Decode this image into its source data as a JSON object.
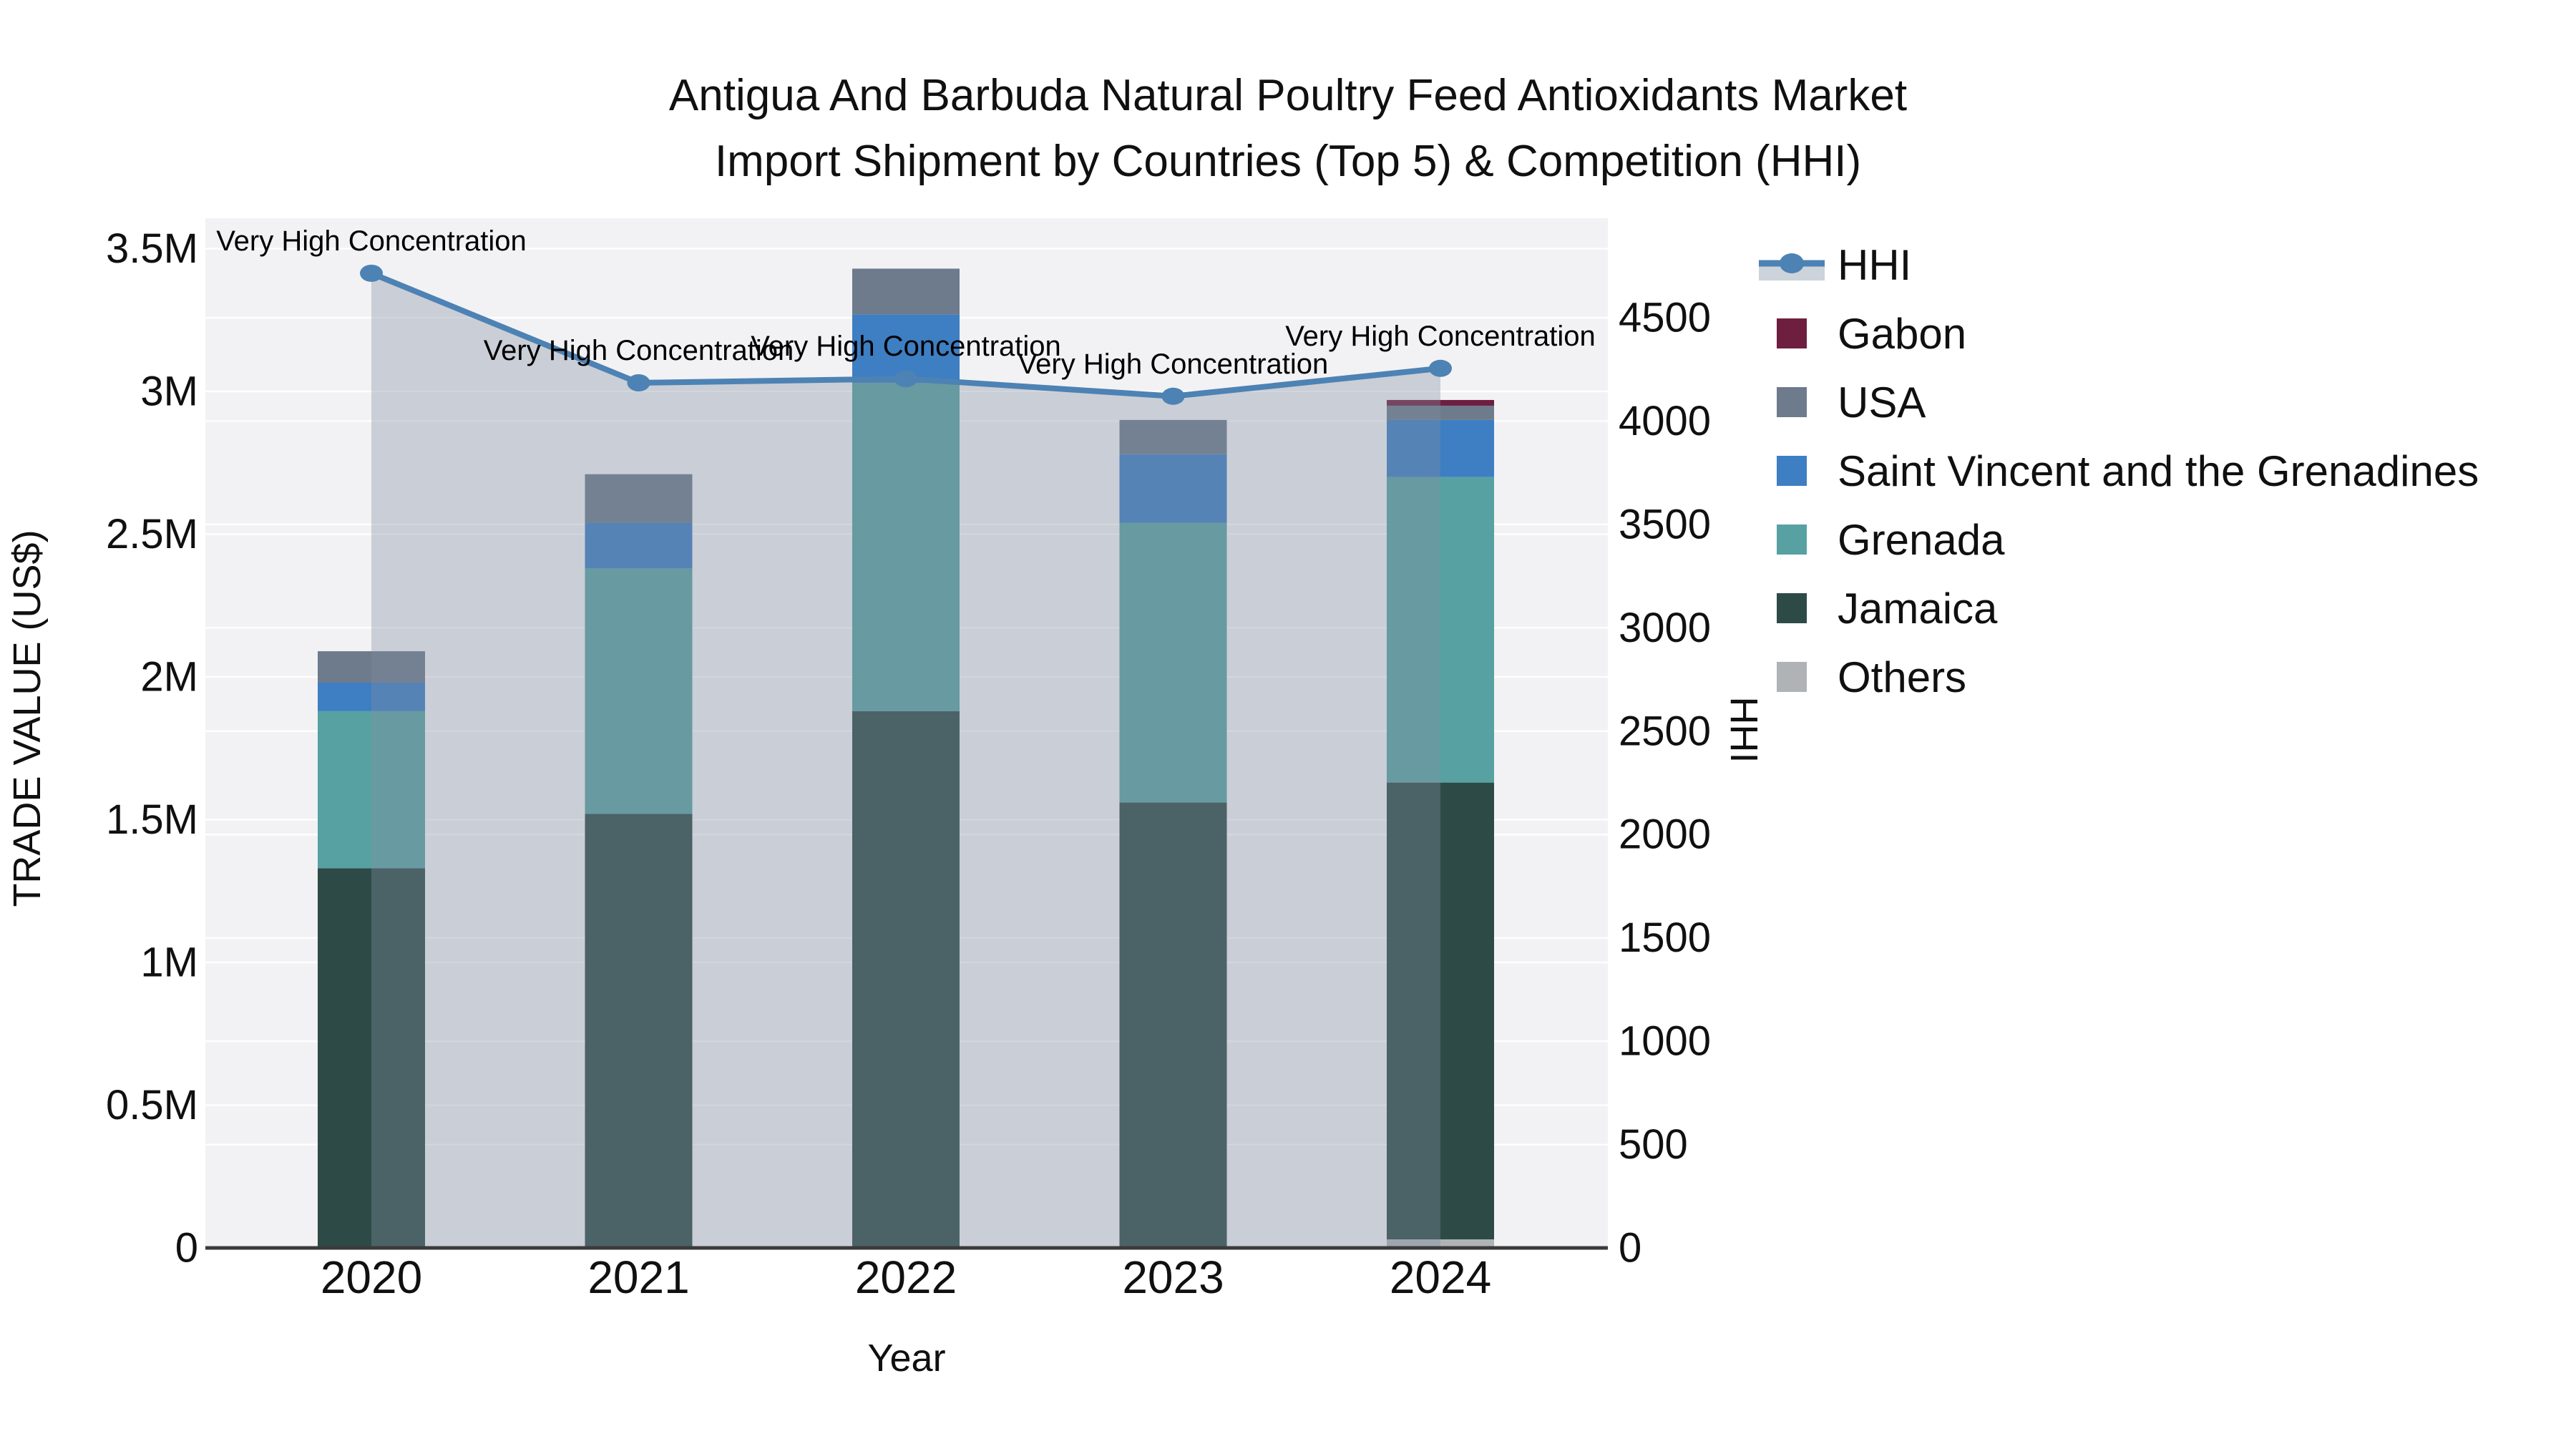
{
  "title": {
    "line1": "Antigua And Barbuda Natural Poultry Feed Antioxidants Market",
    "line2": "Import Shipment by Countries (Top 5) & Competition (HHI)"
  },
  "axes": {
    "x": {
      "title": "Year"
    },
    "y_left": {
      "title": "TRADE VALUE (US$)",
      "tick_labels": [
        "0",
        "0.5M",
        "1M",
        "1.5M",
        "2M",
        "2.5M",
        "3M",
        "3.5M"
      ],
      "max_millions": 3.5
    },
    "y_right": {
      "title": "HHI",
      "tick_labels": [
        "0",
        "500",
        "1000",
        "1500",
        "2000",
        "2500",
        "3000",
        "3500",
        "4000",
        "4500"
      ],
      "max": 4500
    }
  },
  "colors": {
    "plot_background": "#f2f2f4",
    "gridline": "#ffffff",
    "axis_line": "#3a3a3a",
    "hhi_line": "#4d82b4",
    "hhi_area": "rgba(130,142,162,0.36)",
    "hhi_legend_band": "#ccd3db",
    "text": "#101010"
  },
  "chart_data": {
    "type": "bar+line",
    "title": "Antigua And Barbuda Natural Poultry Feed Antioxidants Market — Import Shipment by Countries (Top 5) & Competition (HHI)",
    "xlabel": "Year",
    "ylabel_left": "TRADE VALUE (US$)",
    "ylabel_right": "HHI",
    "ylim_left_millions": [
      0,
      3.5
    ],
    "ylim_right": [
      0,
      4500
    ],
    "grid": true,
    "legend_position": "right",
    "categories": [
      "2020",
      "2021",
      "2022",
      "2023",
      "2024"
    ],
    "bar_unit": "US$ millions",
    "stack_order_bottom_to_top": [
      "Others",
      "Jamaica",
      "Grenada",
      "Saint Vincent and the Grenadines",
      "USA",
      "Gabon"
    ],
    "series": [
      {
        "name": "Others",
        "color": "#b0b3b6",
        "values": [
          0,
          0,
          0,
          0,
          0.03
        ]
      },
      {
        "name": "Jamaica",
        "color": "#2d4a47",
        "values": [
          1.33,
          1.52,
          1.88,
          1.56,
          1.6
        ]
      },
      {
        "name": "Grenada",
        "color": "#58a1a2",
        "values": [
          0.55,
          0.86,
          1.15,
          0.98,
          1.07
        ]
      },
      {
        "name": "Saint Vincent and the Grenadines",
        "color": "#3e7ec2",
        "values": [
          0.1,
          0.16,
          0.24,
          0.24,
          0.2
        ]
      },
      {
        "name": "USA",
        "color": "#6d7b8c",
        "values": [
          0.11,
          0.17,
          0.16,
          0.12,
          0.05
        ]
      },
      {
        "name": "Gabon",
        "color": "#6e1f3f",
        "values": [
          0,
          0,
          0,
          0,
          0.02
        ]
      }
    ],
    "line_series": {
      "name": "HHI",
      "axis": "right",
      "values": [
        4715,
        4185,
        4205,
        4120,
        4255
      ]
    },
    "annotations": [
      {
        "category": "2020",
        "text": "Very High Concentration"
      },
      {
        "category": "2021",
        "text": "Very High Concentration"
      },
      {
        "category": "2022",
        "text": "Very High Concentration"
      },
      {
        "category": "2023",
        "text": "Very High Concentration"
      },
      {
        "category": "2024",
        "text": "Very High Concentration"
      }
    ]
  },
  "legend": {
    "items": [
      {
        "label": "HHI",
        "type": "line"
      },
      {
        "label": "Gabon",
        "type": "swatch",
        "color": "#6e1f3f"
      },
      {
        "label": "USA",
        "type": "swatch",
        "color": "#6d7b8c"
      },
      {
        "label": "Saint Vincent and the Grenadines",
        "type": "swatch",
        "color": "#3e7ec2"
      },
      {
        "label": "Grenada",
        "type": "swatch",
        "color": "#58a1a2"
      },
      {
        "label": "Jamaica",
        "type": "swatch",
        "color": "#2d4a47"
      },
      {
        "label": "Others",
        "type": "swatch",
        "color": "#b0b3b6"
      }
    ]
  }
}
